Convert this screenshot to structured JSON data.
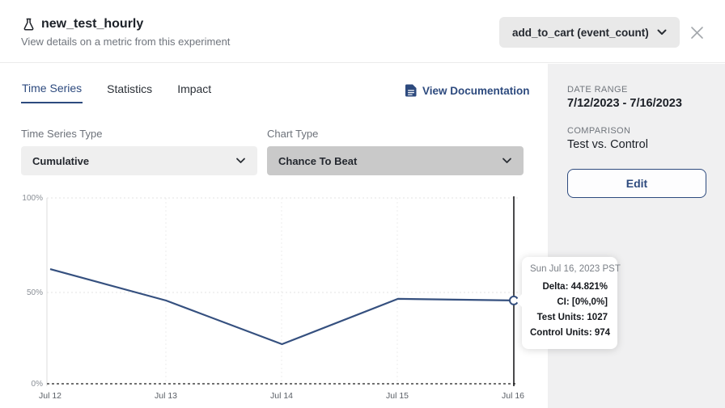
{
  "colors": {
    "accent": "#2d4a7e",
    "line": "#35507f",
    "crosshair": "#1d1d1f",
    "pill-bg": "#e9e9e9",
    "select1-bg": "#efefef",
    "select2-bg": "#c9c9c9",
    "sidebar-bg": "#f0f0f1"
  },
  "header": {
    "title": "new_test_hourly",
    "subtitle": "View details on a metric from this experiment",
    "metric_selector_value": "add_to_cart (event_count)"
  },
  "tabs": {
    "items": [
      {
        "label": "Time Series",
        "active": true
      },
      {
        "label": "Statistics",
        "active": false
      },
      {
        "label": "Impact",
        "active": false
      }
    ],
    "docs_link_label": "View Documentation"
  },
  "controls": {
    "time_series_type_label": "Time Series Type",
    "time_series_type_value": "Cumulative",
    "chart_type_label": "Chart Type",
    "chart_type_value": "Chance To Beat"
  },
  "chart_data": {
    "type": "line",
    "categories": [
      "Jul 12",
      "Jul 13",
      "Jul 14",
      "Jul 15",
      "Jul 16"
    ],
    "values": [
      61.7,
      44.8,
      21.3,
      45.7,
      44.821
    ],
    "y_ticks": [
      "100%",
      "50%",
      "0%"
    ],
    "ylim": [
      0,
      100
    ],
    "xlabel": "",
    "ylabel": "",
    "grid": true,
    "legend": "none",
    "crosshair_at": "Jul 16",
    "endpoint_marker": true
  },
  "tooltip": {
    "header": "Sun Jul 16, 2023 PST",
    "lines": [
      "Delta: 44.821%",
      "CI: [0%,0%]",
      "Test Units: 1027",
      "Control Units: 974"
    ]
  },
  "sidebar": {
    "date_range_label": "DATE RANGE",
    "date_range_value": "7/12/2023 - 7/16/2023",
    "comparison_label": "COMPARISON",
    "comparison_value": "Test vs. Control",
    "edit_label": "Edit"
  }
}
